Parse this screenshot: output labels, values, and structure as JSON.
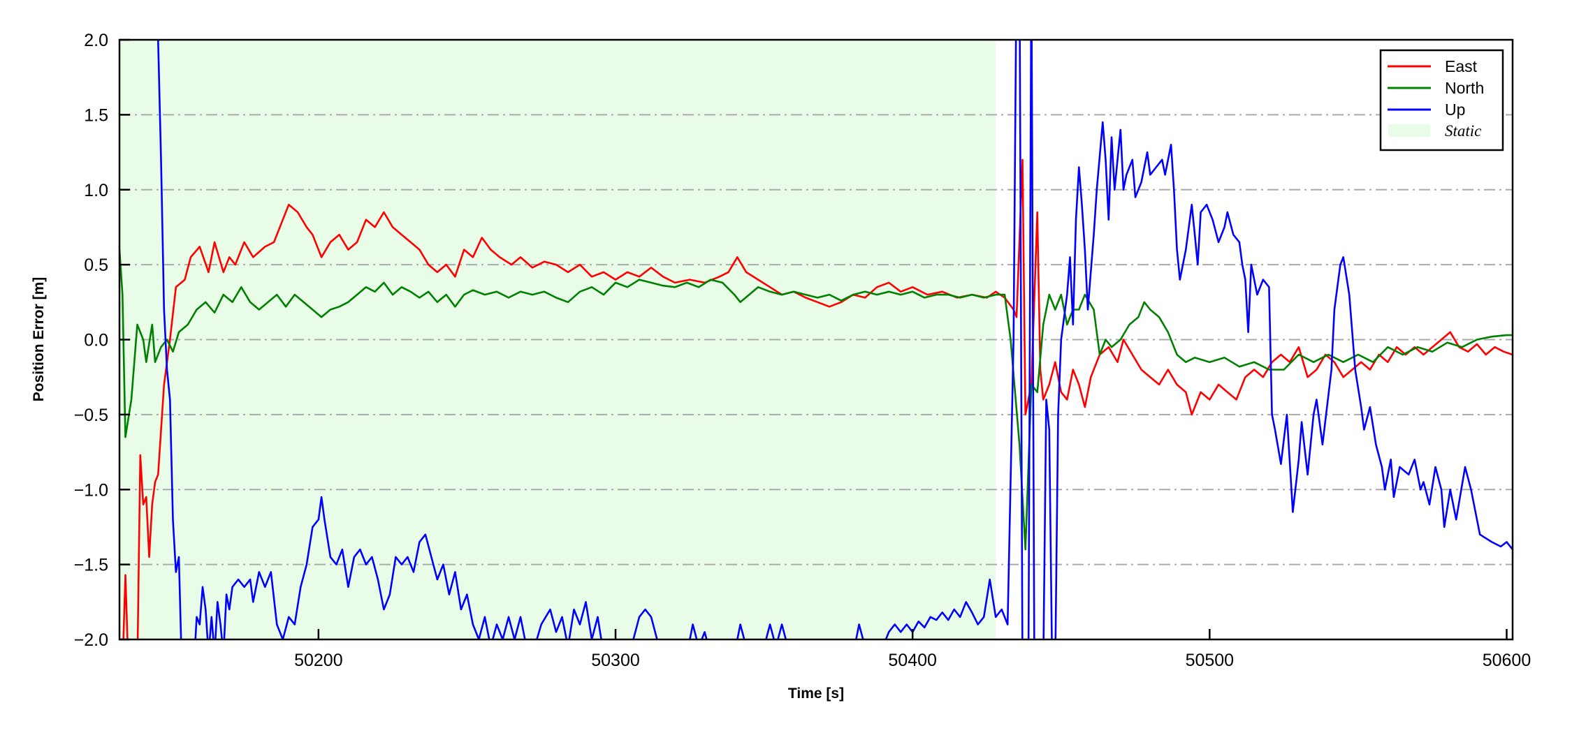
{
  "chart_data": {
    "type": "line",
    "title": "",
    "xlabel": "Time [s]",
    "ylabel": "Position Error [m]",
    "xlim": [
      50133,
      50602
    ],
    "ylim": [
      -2.0,
      2.0
    ],
    "xticks": [
      50200,
      50300,
      50400,
      50500,
      50600
    ],
    "xtick_labels": [
      "50200",
      "50300",
      "50400",
      "50500",
      "50600"
    ],
    "yticks": [
      -2.0,
      -1.5,
      -1.0,
      -0.5,
      0.0,
      0.5,
      1.0,
      1.5,
      2.0
    ],
    "ytick_labels": [
      "−2.0",
      "−1.5",
      "−1.0",
      "−0.5",
      "0.0",
      "0.5",
      "1.0",
      "1.5",
      "2.0"
    ],
    "grid": "horizontal dash-dot",
    "legend_position": "top-right",
    "shaded_region": {
      "name": "Static",
      "x": [
        50133,
        50428
      ],
      "color": "#e8fce8"
    },
    "legend": [
      "East",
      "North",
      "Up",
      "Static"
    ],
    "series": [
      {
        "name": "East",
        "color": "#ff0000",
        "x": [
          50133,
          50134,
          50135,
          50136,
          50139,
          50140,
          50141,
          50142,
          50143,
          50144,
          50145,
          50146,
          50148,
          50150,
          50152,
          50155,
          50157,
          50160,
          50163,
          50165,
          50168,
          50170,
          50172,
          50175,
          50178,
          50182,
          50185,
          50188,
          50190,
          50193,
          50196,
          50198,
          50201,
          50204,
          50207,
          50210,
          50213,
          50216,
          50219,
          50222,
          50225,
          50228,
          50231,
          50234,
          50237,
          50240,
          50243,
          50246,
          50249,
          50252,
          50255,
          50258,
          50261,
          50265,
          50268,
          50272,
          50276,
          50280,
          50284,
          50288,
          50292,
          50296,
          50300,
          50304,
          50308,
          50312,
          50316,
          50320,
          50325,
          50330,
          50335,
          50338,
          50341,
          50344,
          50348,
          50352,
          50356,
          50360,
          50364,
          50368,
          50372,
          50376,
          50380,
          50384,
          50388,
          50392,
          50396,
          50400,
          50405,
          50410,
          50415,
          50420,
          50425,
          50428,
          50431,
          50434,
          50435,
          50437,
          50438,
          50440,
          50442,
          50443,
          50444,
          50446,
          50448,
          50450,
          50452,
          50454,
          50456,
          50458,
          50460,
          50463,
          50466,
          50469,
          50471,
          50474,
          50477,
          50480,
          50483,
          50486,
          50489,
          50492,
          50494,
          50497,
          50500,
          50503,
          50506,
          50509,
          50512,
          50515,
          50518,
          50521,
          50524,
          50527,
          50530,
          50533,
          50536,
          50539,
          50542,
          50545,
          50548,
          50551,
          50554,
          50557,
          50560,
          50563,
          50566,
          50569,
          50572,
          50575,
          50578,
          50581,
          50584,
          50587,
          50590,
          50593,
          50596,
          50599,
          50602
        ],
        "y": [
          -2.2,
          -2.2,
          -1.57,
          -2.2,
          -2.2,
          -0.77,
          -1.1,
          -1.05,
          -1.45,
          -1.1,
          -0.95,
          -0.9,
          -0.3,
          0.0,
          0.35,
          0.4,
          0.55,
          0.62,
          0.45,
          0.65,
          0.45,
          0.55,
          0.5,
          0.65,
          0.55,
          0.62,
          0.65,
          0.8,
          0.9,
          0.85,
          0.75,
          0.7,
          0.55,
          0.65,
          0.7,
          0.6,
          0.65,
          0.8,
          0.75,
          0.85,
          0.75,
          0.7,
          0.65,
          0.6,
          0.5,
          0.45,
          0.5,
          0.42,
          0.6,
          0.55,
          0.68,
          0.6,
          0.55,
          0.5,
          0.55,
          0.48,
          0.52,
          0.5,
          0.45,
          0.5,
          0.42,
          0.45,
          0.4,
          0.45,
          0.42,
          0.48,
          0.42,
          0.38,
          0.4,
          0.38,
          0.42,
          0.45,
          0.55,
          0.45,
          0.4,
          0.35,
          0.3,
          0.32,
          0.28,
          0.25,
          0.22,
          0.25,
          0.3,
          0.28,
          0.35,
          0.38,
          0.32,
          0.35,
          0.3,
          0.32,
          0.28,
          0.3,
          0.28,
          0.32,
          0.28,
          0.2,
          0.15,
          1.2,
          -0.5,
          -0.3,
          0.85,
          -0.2,
          -0.4,
          -0.3,
          -0.15,
          -0.35,
          -0.4,
          -0.2,
          -0.3,
          -0.45,
          -0.25,
          -0.1,
          -0.05,
          -0.15,
          0.0,
          -0.1,
          -0.2,
          -0.25,
          -0.3,
          -0.2,
          -0.3,
          -0.35,
          -0.5,
          -0.35,
          -0.4,
          -0.3,
          -0.35,
          -0.4,
          -0.25,
          -0.2,
          -0.25,
          -0.15,
          -0.1,
          -0.15,
          -0.05,
          -0.25,
          -0.2,
          -0.1,
          -0.15,
          -0.25,
          -0.2,
          -0.15,
          -0.2,
          -0.1,
          -0.15,
          -0.05,
          -0.1,
          -0.05,
          -0.1,
          -0.05,
          0.0,
          0.05,
          -0.05,
          -0.08,
          -0.03,
          -0.1,
          -0.05,
          -0.08,
          -0.1
        ]
      },
      {
        "name": "North",
        "color": "#008000",
        "x": [
          50133,
          50134,
          50135,
          50137,
          50139,
          50141,
          50142,
          50144,
          50145,
          50147,
          50149,
          50151,
          50153,
          50156,
          50159,
          50162,
          50165,
          50168,
          50171,
          50174,
          50177,
          50180,
          50183,
          50186,
          50189,
          50192,
          50195,
          50198,
          50201,
          50204,
          50207,
          50210,
          50213,
          50216,
          50219,
          50222,
          50225,
          50228,
          50231,
          50234,
          50237,
          50240,
          50243,
          50246,
          50249,
          50252,
          50256,
          50260,
          50264,
          50268,
          50272,
          50276,
          50280,
          50284,
          50288,
          50292,
          50296,
          50300,
          50304,
          50308,
          50312,
          50316,
          50320,
          50324,
          50328,
          50332,
          50336,
          50340,
          50342,
          50345,
          50348,
          50352,
          50356,
          50360,
          50364,
          50368,
          50372,
          50376,
          50380,
          50384,
          50388,
          50392,
          50396,
          50400,
          50404,
          50408,
          50412,
          50416,
          50420,
          50424,
          50428,
          50431,
          50433,
          50436,
          50438,
          50440,
          50442,
          50444,
          50446,
          50448,
          50450,
          50452,
          50454,
          50456,
          50458,
          50461,
          50463,
          50465,
          50467,
          50470,
          50473,
          50476,
          50478,
          50480,
          50483,
          50486,
          50489,
          50492,
          50495,
          50500,
          50505,
          50510,
          50515,
          50520,
          50525,
          50530,
          50535,
          50540,
          50545,
          50550,
          50555,
          50560,
          50565,
          50570,
          50575,
          50580,
          50585,
          50590,
          50595,
          50600,
          50602
        ],
        "y": [
          0.6,
          0.3,
          -0.65,
          -0.4,
          0.1,
          0.0,
          -0.15,
          0.1,
          -0.15,
          -0.05,
          0.0,
          -0.08,
          0.05,
          0.1,
          0.2,
          0.25,
          0.18,
          0.3,
          0.25,
          0.35,
          0.25,
          0.2,
          0.25,
          0.3,
          0.22,
          0.3,
          0.25,
          0.2,
          0.15,
          0.2,
          0.22,
          0.25,
          0.3,
          0.35,
          0.32,
          0.38,
          0.3,
          0.35,
          0.32,
          0.28,
          0.32,
          0.25,
          0.3,
          0.22,
          0.3,
          0.33,
          0.3,
          0.32,
          0.28,
          0.32,
          0.3,
          0.32,
          0.28,
          0.25,
          0.32,
          0.35,
          0.3,
          0.38,
          0.35,
          0.4,
          0.38,
          0.36,
          0.35,
          0.38,
          0.35,
          0.4,
          0.38,
          0.3,
          0.25,
          0.3,
          0.35,
          0.32,
          0.3,
          0.32,
          0.3,
          0.28,
          0.3,
          0.26,
          0.3,
          0.32,
          0.3,
          0.32,
          0.3,
          0.32,
          0.28,
          0.3,
          0.3,
          0.28,
          0.3,
          0.28,
          0.3,
          0.3,
          0.0,
          -0.7,
          -1.4,
          -0.3,
          -0.35,
          0.1,
          0.3,
          0.2,
          0.3,
          0.1,
          0.2,
          0.2,
          0.3,
          0.2,
          -0.1,
          0.0,
          -0.05,
          0.0,
          0.1,
          0.15,
          0.25,
          0.2,
          0.15,
          0.05,
          -0.1,
          -0.15,
          -0.12,
          -0.15,
          -0.12,
          -0.18,
          -0.15,
          -0.2,
          -0.2,
          -0.1,
          -0.15,
          -0.1,
          -0.15,
          -0.1,
          -0.15,
          -0.05,
          -0.1,
          -0.05,
          -0.08,
          -0.02,
          -0.05,
          0.0,
          0.02,
          0.03,
          0.03
        ]
      },
      {
        "name": "Up",
        "color": "#0000ff",
        "x": [
          50133,
          50146,
          50147,
          50148,
          50149,
          50150,
          50151,
          50152,
          50153,
          50154,
          50158,
          50159,
          50160,
          50161,
          50162,
          50163,
          50164,
          50165,
          50166,
          50167,
          50168,
          50169,
          50170,
          50171,
          50173,
          50175,
          50177,
          50178,
          50180,
          50182,
          50184,
          50186,
          50188,
          50190,
          50192,
          50194,
          50196,
          50198,
          50200,
          50201,
          50202,
          50204,
          50206,
          50208,
          50210,
          50212,
          50214,
          50216,
          50218,
          50220,
          50222,
          50224,
          50226,
          50228,
          50230,
          50232,
          50234,
          50236,
          50238,
          50240,
          50242,
          50244,
          50246,
          50248,
          50250,
          50252,
          50254,
          50256,
          50258,
          50260,
          50262,
          50264,
          50266,
          50268,
          50270,
          50272,
          50275,
          50278,
          50280,
          50282,
          50284,
          50286,
          50288,
          50290,
          50292,
          50294,
          50296,
          50300,
          50304,
          50306,
          50308,
          50310,
          50312,
          50314,
          50316,
          50320,
          50324,
          50326,
          50328,
          50330,
          50332,
          50336,
          50340,
          50342,
          50344,
          50346,
          50350,
          50352,
          50354,
          50356,
          50358,
          50360,
          50364,
          50368,
          50372,
          50376,
          50380,
          50382,
          50384,
          50386,
          50390,
          50392,
          50394,
          50396,
          50398,
          50400,
          50402,
          50404,
          50406,
          50408,
          50410,
          50412,
          50414,
          50416,
          50418,
          50420,
          50422,
          50424,
          50426,
          50428,
          50430,
          50432,
          50434,
          50435,
          50436,
          50437,
          50439,
          50440,
          50441,
          50443,
          50444,
          50445,
          50446,
          50447,
          50448,
          50449,
          50450,
          50452,
          50453,
          50454,
          50455,
          50456,
          50457,
          50458,
          50459,
          50461,
          50462,
          50464,
          50465,
          50466,
          50467,
          50468,
          50469,
          50470,
          50471,
          50472,
          50474,
          50475,
          50477,
          50479,
          50480,
          50482,
          50484,
          50485,
          50487,
          50488,
          50489,
          50490,
          50492,
          50494,
          50495,
          50496,
          50497,
          50499,
          50501,
          50503,
          50505,
          50506,
          50508,
          50510,
          50511,
          50512,
          50513,
          50514,
          50516,
          50518,
          50520,
          50521,
          50522,
          50524,
          50526,
          50528,
          50530,
          50531,
          50533,
          50535,
          50536,
          50538,
          50541,
          50542,
          50544,
          50545,
          50547,
          50549,
          50551,
          50552,
          50554,
          50556,
          50558,
          50559,
          50561,
          50562,
          50564,
          50567,
          50569,
          50571,
          50572,
          50574,
          50576,
          50578,
          50579,
          50581,
          50583,
          50586,
          50588,
          50591,
          50595,
          50598,
          50600,
          50602
        ],
        "y": [
          3.0,
          2.0,
          1.2,
          0.2,
          -0.2,
          -0.4,
          -1.2,
          -1.55,
          -1.45,
          -2.2,
          -2.2,
          -1.85,
          -1.9,
          -1.65,
          -1.8,
          -2.1,
          -1.85,
          -2.1,
          -1.75,
          -1.9,
          -2.1,
          -1.7,
          -1.8,
          -1.65,
          -1.6,
          -1.65,
          -1.6,
          -1.75,
          -1.55,
          -1.65,
          -1.55,
          -1.9,
          -2.0,
          -1.85,
          -1.9,
          -1.65,
          -1.5,
          -1.25,
          -1.2,
          -1.05,
          -1.2,
          -1.45,
          -1.5,
          -1.4,
          -1.65,
          -1.45,
          -1.4,
          -1.5,
          -1.45,
          -1.6,
          -1.8,
          -1.7,
          -1.45,
          -1.5,
          -1.45,
          -1.55,
          -1.35,
          -1.3,
          -1.45,
          -1.6,
          -1.5,
          -1.7,
          -1.55,
          -1.8,
          -1.7,
          -1.9,
          -2.0,
          -1.85,
          -2.05,
          -1.9,
          -2.0,
          -1.85,
          -2.0,
          -1.85,
          -2.05,
          -2.1,
          -1.9,
          -1.8,
          -1.95,
          -1.85,
          -2.05,
          -1.8,
          -1.9,
          -1.75,
          -2.0,
          -1.85,
          -2.1,
          -2.2,
          -2.2,
          -2.0,
          -1.85,
          -1.8,
          -1.85,
          -2.0,
          -2.1,
          -2.2,
          -2.1,
          -1.9,
          -2.05,
          -1.95,
          -2.1,
          -2.2,
          -2.1,
          -1.9,
          -2.05,
          -2.2,
          -2.05,
          -1.9,
          -2.05,
          -1.9,
          -2.05,
          -2.2,
          -2.1,
          -2.2,
          -2.1,
          -2.2,
          -2.1,
          -1.9,
          -2.05,
          -2.2,
          -2.05,
          -1.95,
          -1.9,
          -1.95,
          -1.9,
          -1.95,
          -1.88,
          -1.92,
          -1.85,
          -1.87,
          -1.82,
          -1.87,
          -1.8,
          -1.85,
          -1.75,
          -1.82,
          -1.9,
          -1.85,
          -1.6,
          -1.85,
          -1.8,
          -1.9,
          0.0,
          2.5,
          2.5,
          -2.2,
          -2.2,
          2.5,
          -2.2,
          -2.2,
          -2.2,
          -0.4,
          -0.6,
          -2.2,
          -2.2,
          -0.5,
          0.0,
          0.3,
          0.55,
          0.1,
          0.8,
          1.15,
          0.9,
          0.6,
          0.2,
          0.7,
          1.0,
          1.45,
          1.2,
          0.8,
          1.35,
          1.0,
          1.2,
          1.4,
          1.0,
          1.1,
          1.2,
          0.95,
          1.05,
          1.25,
          1.1,
          1.15,
          1.2,
          1.1,
          1.3,
          1.0,
          0.6,
          0.4,
          0.6,
          0.9,
          0.7,
          0.5,
          0.85,
          0.9,
          0.8,
          0.65,
          0.75,
          0.85,
          0.7,
          0.65,
          0.5,
          0.4,
          0.05,
          0.5,
          0.3,
          0.4,
          0.35,
          -0.5,
          -0.6,
          -0.83,
          -0.5,
          -1.15,
          -0.8,
          -0.55,
          -0.9,
          -0.5,
          -0.4,
          -0.7,
          -0.2,
          0.2,
          0.5,
          0.55,
          0.3,
          -0.2,
          -0.45,
          -0.6,
          -0.45,
          -0.7,
          -0.85,
          -1.0,
          -0.8,
          -1.05,
          -0.85,
          -0.9,
          -0.8,
          -1.0,
          -0.95,
          -1.1,
          -0.85,
          -1.0,
          -1.25,
          -1.0,
          -1.2,
          -0.85,
          -1.0,
          -1.3,
          -1.35,
          -1.38,
          -1.35,
          -1.4
        ]
      }
    ]
  }
}
